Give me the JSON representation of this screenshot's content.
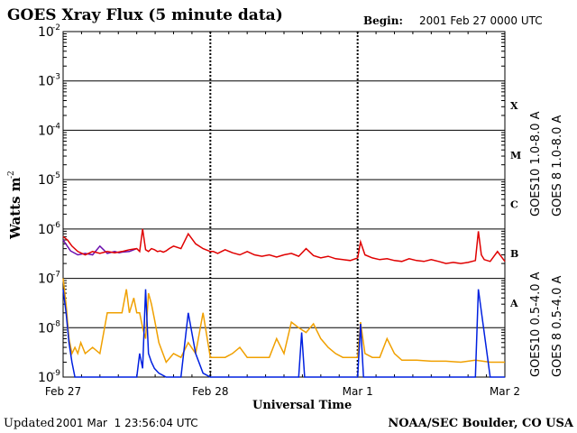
{
  "header": {
    "title": "GOES Xray Flux (5 minute data)",
    "begin_label": "Begin:",
    "begin_value": "2001 Feb 27 0000 UTC"
  },
  "footer": {
    "updated_label": "Updated",
    "updated_value": "2001 Mar  1 23:56:04 UTC",
    "credit": "NOAA/SEC Boulder, CO USA"
  },
  "colors": {
    "goes10_long": "#6a0dad",
    "goes8_long": "#e00000",
    "goes10_short": "#f0a000",
    "goes8_short": "#0020e0"
  },
  "chart_data": {
    "type": "line",
    "title": "GOES Xray Flux (5 minute data)",
    "xlabel": "Universal Time",
    "ylabel": "Watts m",
    "ylabel_exponent": "-2",
    "yscale": "log",
    "ylim": [
      1e-09,
      0.01
    ],
    "xlim_days": [
      0,
      3
    ],
    "x_ticks": [
      "Feb 27",
      "Feb 28",
      "Mar 1",
      "Mar 2"
    ],
    "y_ticks": [
      {
        "base": "10",
        "exp": "-9"
      },
      {
        "base": "10",
        "exp": "-8"
      },
      {
        "base": "10",
        "exp": "-7"
      },
      {
        "base": "10",
        "exp": "-6"
      },
      {
        "base": "10",
        "exp": "-5"
      },
      {
        "base": "10",
        "exp": "-4"
      },
      {
        "base": "10",
        "exp": "-3"
      },
      {
        "base": "10",
        "exp": "-2"
      }
    ],
    "flare_classes": [
      "X",
      "M",
      "C",
      "B",
      "A"
    ],
    "series": [
      {
        "name": "GOES10 1.0-8.0 A",
        "color": "#6a0dad",
        "x": [
          0.0,
          0.05,
          0.1,
          0.15,
          0.2,
          0.25,
          0.3,
          0.35,
          0.38,
          0.4,
          0.45,
          0.5
        ],
        "y": [
          6e-07,
          3.6e-07,
          3e-07,
          3.2e-07,
          3e-07,
          4.5e-07,
          3.2e-07,
          3.5e-07,
          3.3e-07,
          3.4e-07,
          3.5e-07,
          4e-07
        ]
      },
      {
        "name": "GOES 8 1.0-8.0 A",
        "color": "#e00000",
        "x": [
          0.0,
          0.03,
          0.06,
          0.1,
          0.15,
          0.2,
          0.25,
          0.3,
          0.35,
          0.4,
          0.45,
          0.5,
          0.52,
          0.54,
          0.56,
          0.58,
          0.6,
          0.62,
          0.64,
          0.66,
          0.68,
          0.7,
          0.72,
          0.75,
          0.8,
          0.85,
          0.9,
          0.95,
          1.0,
          1.02,
          1.05,
          1.1,
          1.15,
          1.2,
          1.25,
          1.3,
          1.35,
          1.4,
          1.45,
          1.5,
          1.55,
          1.6,
          1.65,
          1.7,
          1.75,
          1.8,
          1.85,
          1.9,
          1.95,
          2.0,
          2.02,
          2.05,
          2.1,
          2.15,
          2.2,
          2.25,
          2.3,
          2.35,
          2.4,
          2.45,
          2.5,
          2.55,
          2.6,
          2.65,
          2.7,
          2.75,
          2.8,
          2.82,
          2.84,
          2.86,
          2.9,
          2.95,
          3.0
        ],
        "y": [
          7e-07,
          6e-07,
          4.5e-07,
          3.5e-07,
          3e-07,
          3.5e-07,
          3.2e-07,
          3.5e-07,
          3.3e-07,
          3.5e-07,
          3.8e-07,
          4e-07,
          3.5e-07,
          1e-06,
          3.8e-07,
          3.5e-07,
          4e-07,
          3.8e-07,
          3.5e-07,
          3.6e-07,
          3.4e-07,
          3.6e-07,
          4e-07,
          4.5e-07,
          4e-07,
          8e-07,
          5e-07,
          4e-07,
          3.5e-07,
          3.5e-07,
          3.2e-07,
          3.8e-07,
          3.3e-07,
          3e-07,
          3.5e-07,
          3e-07,
          2.8e-07,
          3e-07,
          2.7e-07,
          3e-07,
          3.2e-07,
          2.8e-07,
          4e-07,
          2.9e-07,
          2.6e-07,
          2.8e-07,
          2.5e-07,
          2.4e-07,
          2.3e-07,
          2.6e-07,
          5.5e-07,
          3e-07,
          2.6e-07,
          2.4e-07,
          2.5e-07,
          2.3e-07,
          2.2e-07,
          2.5e-07,
          2.3e-07,
          2.2e-07,
          2.4e-07,
          2.2e-07,
          2e-07,
          2.1e-07,
          2e-07,
          2.1e-07,
          2.3e-07,
          9e-07,
          3e-07,
          2.4e-07,
          2.2e-07,
          3.5e-07,
          2.2e-07
        ]
      },
      {
        "name": "GOES10 0.5-4.0 A",
        "color": "#f0a000",
        "x": [
          0.0,
          0.02,
          0.04,
          0.06,
          0.08,
          0.1,
          0.12,
          0.15,
          0.2,
          0.25,
          0.3,
          0.35,
          0.4,
          0.43,
          0.45,
          0.48,
          0.5,
          0.52,
          0.54,
          0.56,
          0.58,
          0.6,
          0.62,
          0.65,
          0.7,
          0.75,
          0.8,
          0.85,
          0.9,
          0.95,
          1.0,
          1.05,
          1.1,
          1.15,
          1.2,
          1.25,
          1.3,
          1.35,
          1.4,
          1.45,
          1.5,
          1.55,
          1.6,
          1.65,
          1.7,
          1.75,
          1.8,
          1.85,
          1.9,
          1.95,
          2.0,
          2.02,
          2.05,
          2.1,
          2.15,
          2.2,
          2.25,
          2.3,
          2.4,
          2.5,
          2.6,
          2.7,
          2.8,
          2.85,
          2.9,
          2.95,
          3.0
        ],
        "y": [
          1e-07,
          3e-08,
          6e-09,
          3e-09,
          4e-09,
          3e-09,
          5e-09,
          3e-09,
          4e-09,
          3e-09,
          2e-08,
          2e-08,
          2e-08,
          6e-08,
          2e-08,
          4e-08,
          2e-08,
          2e-08,
          1e-08,
          6e-09,
          5e-08,
          3e-08,
          1.5e-08,
          5e-09,
          2e-09,
          3e-09,
          2.5e-09,
          5e-09,
          3e-09,
          2e-08,
          2.5e-09,
          2.5e-09,
          2.5e-09,
          3e-09,
          4e-09,
          2.5e-09,
          2.5e-09,
          2.5e-09,
          2.5e-09,
          6e-09,
          3e-09,
          1.3e-08,
          1e-08,
          8e-09,
          1.2e-08,
          6e-09,
          4e-09,
          3e-09,
          2.5e-09,
          2.5e-09,
          2.5e-09,
          1.3e-08,
          3e-09,
          2.5e-09,
          2.5e-09,
          6e-09,
          3e-09,
          2.2e-09,
          2.2e-09,
          2.1e-09,
          2.1e-09,
          2e-09,
          2.2e-09,
          2.1e-09,
          2e-09,
          2e-09,
          2e-09
        ]
      },
      {
        "name": "GOES 8 0.5-4.0 A",
        "color": "#0020e0",
        "x": [
          0.0,
          0.02,
          0.04,
          0.06,
          0.08,
          0.12,
          0.2,
          0.3,
          0.45,
          0.5,
          0.52,
          0.54,
          0.56,
          0.58,
          0.6,
          0.62,
          0.65,
          0.7,
          0.75,
          0.8,
          0.85,
          0.9,
          0.95,
          1.0,
          1.2,
          1.4,
          1.6,
          1.62,
          1.64,
          1.7,
          1.8,
          2.0,
          2.02,
          2.04,
          2.1,
          2.3,
          2.5,
          2.6,
          2.75,
          2.8,
          2.82,
          2.9,
          3.0
        ],
        "y": [
          6e-08,
          2e-08,
          5e-09,
          2e-09,
          1e-09,
          1e-09,
          1e-09,
          1e-09,
          1e-09,
          1e-09,
          3e-09,
          1.5e-09,
          6e-08,
          3e-09,
          2e-09,
          1.5e-09,
          1.2e-09,
          1e-09,
          1e-09,
          1e-09,
          2e-08,
          3e-09,
          1.2e-09,
          1e-09,
          1e-09,
          1e-09,
          1e-09,
          8e-09,
          1e-09,
          1e-09,
          1e-09,
          1e-09,
          1.2e-08,
          1e-09,
          1e-09,
          1e-09,
          1e-09,
          1e-09,
          1e-09,
          1e-09,
          6e-08,
          1e-09,
          1e-09
        ]
      }
    ]
  }
}
